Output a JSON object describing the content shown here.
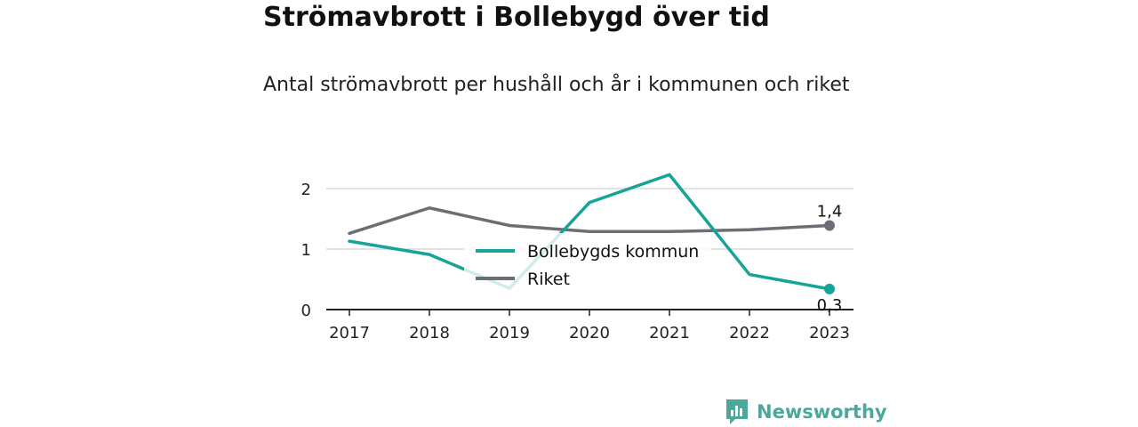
{
  "title": "Strömavbrott i Bollebygd över tid",
  "subtitle": "Antal strömavbrott per hushåll och år i kommunen och riket",
  "brand": "Newsworthy",
  "colors": {
    "kommun": "#17a398",
    "riket": "#6e6c75",
    "grid": "#d9d9d9",
    "axis": "#222222",
    "brand": "#4aa89c"
  },
  "chart_data": {
    "type": "line",
    "categories": [
      "2017",
      "2018",
      "2019",
      "2020",
      "2021",
      "2022",
      "2023"
    ],
    "y_ticks": [
      "0",
      "1",
      "2"
    ],
    "ylim": [
      0,
      2.4
    ],
    "grid": true,
    "legend_position": "center",
    "series": [
      {
        "name": "Bollebygds kommun",
        "color": "#17a398",
        "values": [
          1.13,
          0.91,
          0.35,
          1.77,
          2.23,
          0.58,
          0.34
        ],
        "end_label": "0,3"
      },
      {
        "name": "Riket",
        "color": "#6e6c75",
        "values": [
          1.26,
          1.68,
          1.39,
          1.29,
          1.29,
          1.32,
          1.39
        ],
        "end_label": "1,4"
      }
    ]
  }
}
